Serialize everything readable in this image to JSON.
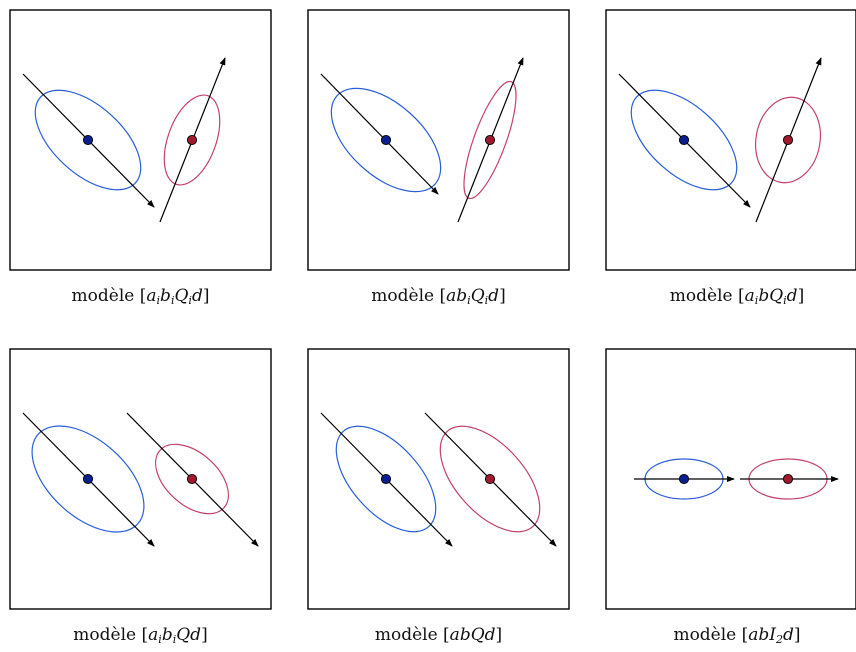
{
  "panels": [
    {
      "word": "modèle",
      "formula": [
        "a",
        "i",
        "b",
        "i",
        "Q",
        "i",
        "d"
      ],
      "class1": {
        "color": "#2a5fd8",
        "dot": "#0a1f8f"
      },
      "class2": {
        "color": "#c4426a",
        "dot": "#a0192e"
      }
    },
    {
      "word": "modèle",
      "formula": [
        "ab",
        "i",
        "Q",
        "i",
        "d"
      ],
      "class1": {
        "color": "#2a5fd8",
        "dot": "#0a1f8f"
      },
      "class2": {
        "color": "#c4426a",
        "dot": "#a0192e"
      }
    },
    {
      "word": "modèle",
      "formula": [
        "a",
        "i",
        "bQ",
        "i",
        "d"
      ],
      "class1": {
        "color": "#2a5fd8",
        "dot": "#0a1f8f"
      },
      "class2": {
        "color": "#c4426a",
        "dot": "#a0192e"
      }
    },
    {
      "word": "modèle",
      "formula": [
        "a",
        "i",
        "b",
        "i",
        "Qd",
        ""
      ],
      "class1": {
        "color": "#2a5fd8",
        "dot": "#0a1f8f"
      },
      "class2": {
        "color": "#c4426a",
        "dot": "#a0192e"
      }
    },
    {
      "word": "modèle",
      "formula": [
        "abQd",
        ""
      ],
      "class1": {
        "color": "#2a5fd8",
        "dot": "#0a1f8f"
      },
      "class2": {
        "color": "#c4426a",
        "dot": "#a0192e"
      }
    },
    {
      "word": "modèle",
      "formula": [
        "abI",
        "2",
        "d",
        ""
      ],
      "class1": {
        "color": "#2a5fd8",
        "dot": "#0a1f8f"
      },
      "class2": {
        "color": "#c4426a",
        "dot": "#a0192e"
      }
    }
  ]
}
